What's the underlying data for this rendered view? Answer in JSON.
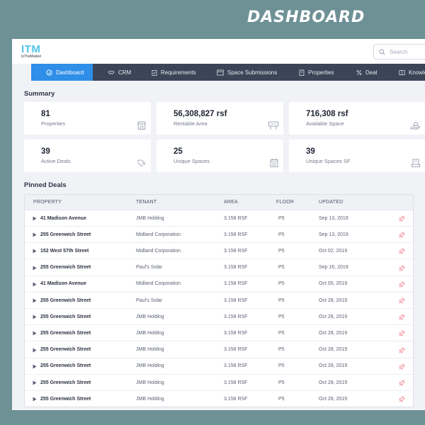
{
  "page": {
    "title": "DASHBOARD"
  },
  "app": {
    "logo": "ITM",
    "logo_sub": "InTheMarket"
  },
  "search": {
    "placeholder": "Search"
  },
  "nav": {
    "items": [
      {
        "label": "Dashboard",
        "icon": "dashboard-icon",
        "active": true
      },
      {
        "label": "CRM",
        "icon": "handshake-icon"
      },
      {
        "label": "Requirements",
        "icon": "clipboard-icon"
      },
      {
        "label": "Space Submissions",
        "icon": "browser-icon"
      },
      {
        "label": "Properties",
        "icon": "building-icon"
      },
      {
        "label": "Deal",
        "icon": "percent-icon"
      },
      {
        "label": "Knowle",
        "icon": "book-icon"
      }
    ]
  },
  "summary": {
    "title": "Summary",
    "cards": [
      {
        "value": "81",
        "label": "Properties",
        "icon": "store-icon"
      },
      {
        "value": "56,308,827 rsf",
        "label": "Rentable Area",
        "icon": "sign-icon"
      },
      {
        "value": "716,308 rsf",
        "label": "Available Space",
        "icon": "hand-house-icon"
      },
      {
        "value": "39",
        "label": "Active Deals",
        "icon": "handshake-icon"
      },
      {
        "value": "25",
        "label": "Unique Spaces",
        "icon": "calendar-icon"
      },
      {
        "value": "39",
        "label": "Unique Spaces SF",
        "icon": "stack-icon"
      }
    ]
  },
  "pinned": {
    "title": "Pinned Deals",
    "columns": [
      "PROPERTY",
      "TENANT",
      "AREA",
      "FLOOR",
      "UPDATED"
    ],
    "rows": [
      {
        "property": "41 Madison Avenue",
        "tenant": "JMB Holding",
        "area": "3.158 RSF",
        "floor": "P5",
        "updated": "Sep 13, 2019"
      },
      {
        "property": "255 Greenwich Street",
        "tenant": "Midland Corporation",
        "area": "3.158 RSF",
        "floor": "P5",
        "updated": "Sep 13, 2019"
      },
      {
        "property": "152 West 57th Street",
        "tenant": "Midland Corporation",
        "area": "3.158 RSF",
        "floor": "P5",
        "updated": "Oct 02, 2019"
      },
      {
        "property": "255 Greenwich Street",
        "tenant": "Paul's Solar",
        "area": "3.158 RSF",
        "floor": "P5",
        "updated": "Sep 16, 2019"
      },
      {
        "property": "41 Madison Avenue",
        "tenant": "Midland Corporation",
        "area": "3.158 RSF",
        "floor": "P5",
        "updated": "Oct 05, 2019"
      },
      {
        "property": "255 Greenwich Street",
        "tenant": "Paul's Solar",
        "area": "3.158 RSF",
        "floor": "P5",
        "updated": "Oct 28, 2019"
      },
      {
        "property": "255 Greenwich Street",
        "tenant": "JMB Holding",
        "area": "3.158 RSF",
        "floor": "P5",
        "updated": "Oct 28, 2019"
      },
      {
        "property": "255 Greenwich Street",
        "tenant": "JMB Holding",
        "area": "3.158 RSF",
        "floor": "P5",
        "updated": "Oct 28, 2019"
      },
      {
        "property": "255 Greenwich Street",
        "tenant": "JMB Holding",
        "area": "3.158 RSF",
        "floor": "P5",
        "updated": "Oct 28, 2019"
      },
      {
        "property": "255 Greenwich Street",
        "tenant": "JMB Holding",
        "area": "3.158 RSF",
        "floor": "P5",
        "updated": "Oct 28, 2019"
      },
      {
        "property": "255 Greenwich Street",
        "tenant": "JMB Holding",
        "area": "3.158 RSF",
        "floor": "P5",
        "updated": "Oct 28, 2019"
      },
      {
        "property": "255 Greenwich Street",
        "tenant": "JMB Holding",
        "area": "3.158 RSF",
        "floor": "P5",
        "updated": "Oct 28, 2019"
      }
    ]
  },
  "colors": {
    "background": "#6e9196",
    "nav": "#3b4557",
    "accent": "#2f8ee8",
    "logo": "#4fc3e6",
    "pin": "#f07a8a"
  }
}
